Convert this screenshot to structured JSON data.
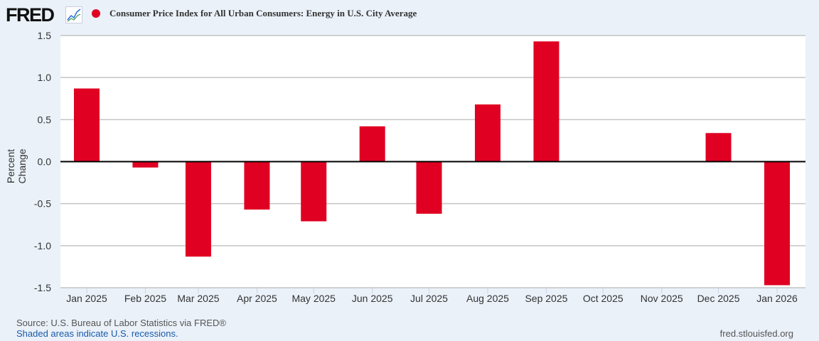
{
  "header": {
    "logo": "FRED",
    "title": "Consumer Price Index for All Urban Consumers: Energy in U.S. City Average"
  },
  "footer": {
    "source": "Source: U.S. Bureau of Labor Statistics via FRED®",
    "recessions": "Shaded areas indicate U.S. recessions.",
    "url": "fred.stlouisfed.org"
  },
  "colors": {
    "bar": "#e00022"
  },
  "chart_data": {
    "type": "bar",
    "title": "Consumer Price Index for All Urban Consumers: Energy in U.S. City Average",
    "ylabel": "Percent Change",
    "xlabel": "",
    "ylim": [
      -1.5,
      1.5
    ],
    "yticks": [
      "1.5",
      "1.0",
      "0.5",
      "0.0",
      "-0.5",
      "-1.0",
      "-1.5"
    ],
    "categories": [
      "Jan 2025",
      "Feb 2025",
      "Mar 2025",
      "Apr 2025",
      "May 2025",
      "Jun 2025",
      "Jul 2025",
      "Aug 2025",
      "Sep 2025",
      "Oct 2025",
      "Nov 2025",
      "Dec 2025",
      "Jan 2026"
    ],
    "values": [
      0.87,
      -0.07,
      -1.13,
      -0.57,
      -0.71,
      0.42,
      -0.62,
      0.68,
      1.43,
      null,
      null,
      0.34,
      -1.47
    ],
    "grid": true,
    "legend": "top-left"
  }
}
